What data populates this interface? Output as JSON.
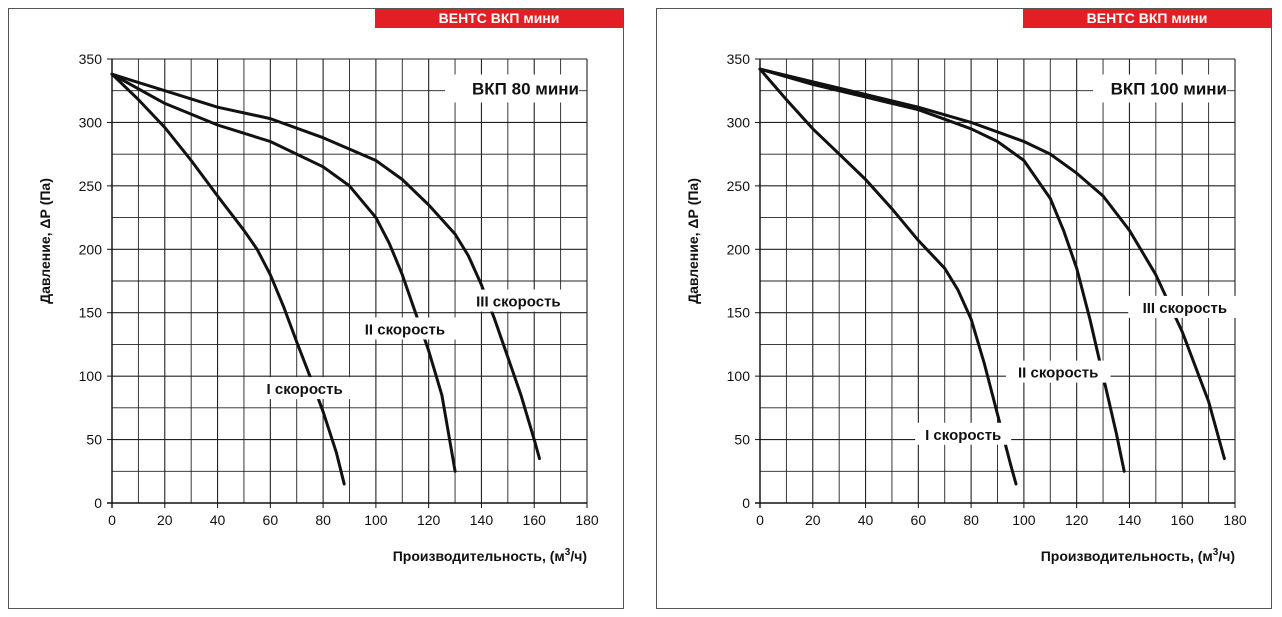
{
  "brand_color": "#e31e24",
  "chart_data": [
    {
      "type": "line",
      "banner": "ВЕНТС ВКП мини",
      "title": "ВКП 80 мини",
      "xlabel": "Производительность, (м",
      "xlabel_sup": "3",
      "xlabel_end": "/ч)",
      "ylabel": "Давление, ΔР (Па)",
      "xlim": [
        0,
        180
      ],
      "ylim": [
        0,
        350
      ],
      "xticks": [
        "0",
        "20",
        "40",
        "60",
        "80",
        "100",
        "120",
        "140",
        "160",
        "180"
      ],
      "yticks": [
        "0",
        "50",
        "100",
        "150",
        "200",
        "250",
        "300",
        "350"
      ],
      "grid": true,
      "series": [
        {
          "name": "I скорость",
          "x": [
            0,
            10,
            20,
            30,
            40,
            50,
            55,
            60,
            65,
            70,
            75,
            80,
            85,
            88
          ],
          "y": [
            338,
            318,
            296,
            270,
            242,
            215,
            200,
            180,
            155,
            127,
            100,
            72,
            40,
            15
          ]
        },
        {
          "name": "II скорость",
          "x": [
            0,
            20,
            40,
            60,
            80,
            90,
            100,
            105,
            110,
            115,
            120,
            125,
            130
          ],
          "y": [
            338,
            315,
            298,
            285,
            265,
            250,
            225,
            205,
            180,
            150,
            120,
            85,
            25
          ]
        },
        {
          "name": "III скорость",
          "x": [
            0,
            20,
            40,
            60,
            80,
            100,
            110,
            120,
            130,
            135,
            140,
            145,
            150,
            155,
            160,
            162
          ],
          "y": [
            338,
            325,
            312,
            303,
            288,
            270,
            255,
            235,
            212,
            195,
            172,
            145,
            115,
            85,
            50,
            35
          ]
        }
      ],
      "labels": [
        {
          "text": "I скорость",
          "x": 73,
          "y": 89
        },
        {
          "text": "II скорость",
          "x": 111,
          "y": 136
        },
        {
          "text": "III скорость",
          "x": 154,
          "y": 158
        }
      ]
    },
    {
      "type": "line",
      "banner": "ВЕНТС ВКП мини",
      "title": "ВКП 100 мини",
      "xlabel": "Производительность, (м",
      "xlabel_sup": "3",
      "xlabel_end": "/ч)",
      "ylabel": "Давление, ΔР (Па)",
      "xlim": [
        0,
        180
      ],
      "ylim": [
        0,
        350
      ],
      "xticks": [
        "0",
        "20",
        "40",
        "60",
        "80",
        "100",
        "120",
        "140",
        "160",
        "180"
      ],
      "yticks": [
        "0",
        "50",
        "100",
        "150",
        "200",
        "250",
        "300",
        "350"
      ],
      "grid": true,
      "series": [
        {
          "name": "I скорость",
          "x": [
            0,
            10,
            20,
            30,
            40,
            50,
            60,
            70,
            75,
            80,
            85,
            90,
            95,
            97
          ],
          "y": [
            342,
            318,
            295,
            275,
            255,
            232,
            207,
            185,
            168,
            145,
            110,
            70,
            30,
            15
          ]
        },
        {
          "name": "II скорость",
          "x": [
            0,
            20,
            40,
            60,
            80,
            90,
            100,
            110,
            115,
            120,
            125,
            130,
            135,
            138
          ],
          "y": [
            342,
            330,
            320,
            310,
            295,
            285,
            270,
            240,
            215,
            185,
            145,
            100,
            55,
            25
          ]
        },
        {
          "name": "III скорость",
          "x": [
            0,
            20,
            40,
            60,
            80,
            100,
            110,
            120,
            130,
            140,
            150,
            160,
            170,
            176
          ],
          "y": [
            342,
            332,
            322,
            312,
            300,
            285,
            275,
            260,
            242,
            215,
            180,
            135,
            80,
            35
          ]
        }
      ],
      "labels": [
        {
          "text": "I скорость",
          "x": 77,
          "y": 53
        },
        {
          "text": "II скорость",
          "x": 113,
          "y": 102
        },
        {
          "text": "III скорость",
          "x": 161,
          "y": 153
        }
      ]
    }
  ]
}
